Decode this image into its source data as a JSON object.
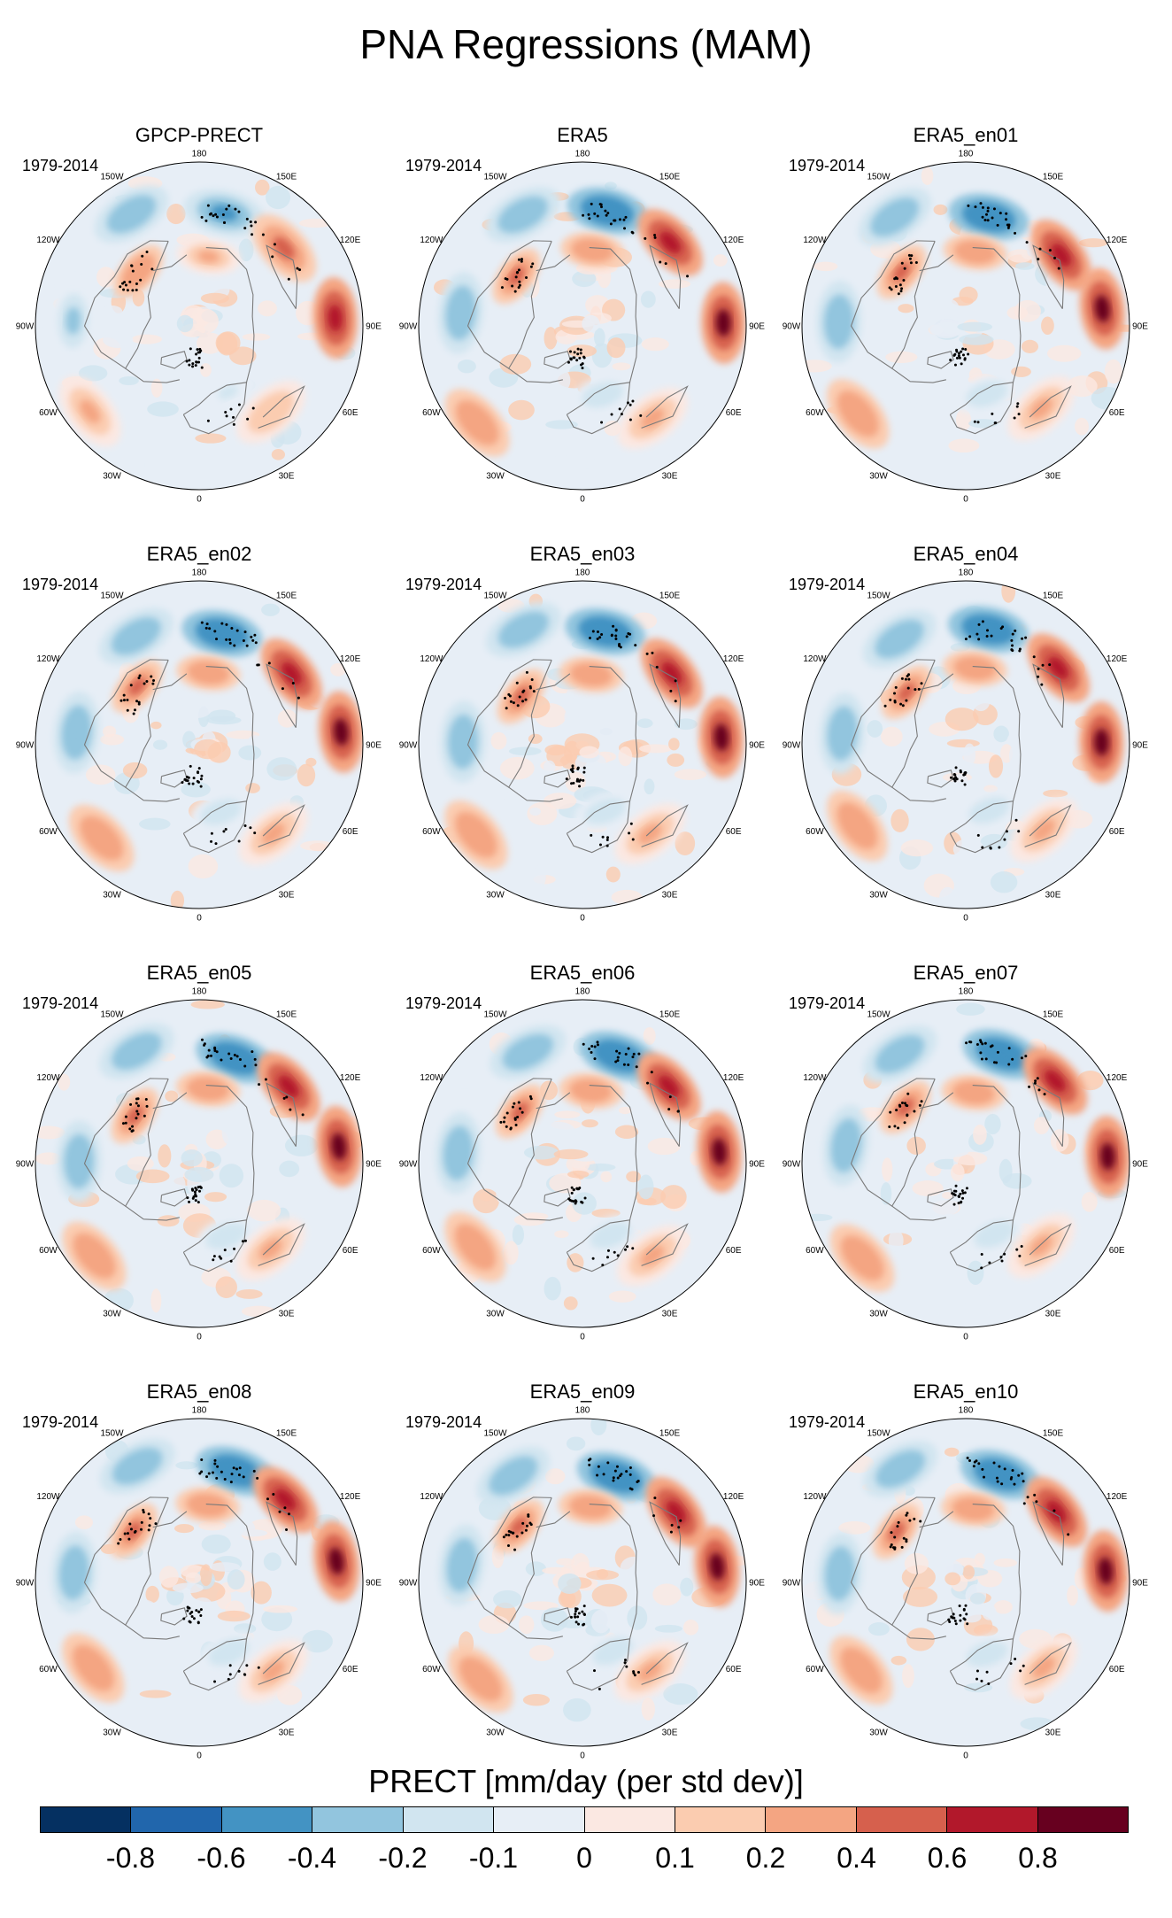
{
  "title": "PNA Regressions (MAM)",
  "colors": {
    "scale": [
      "#053061",
      "#2166ac",
      "#4393c3",
      "#92c5de",
      "#d1e5f0",
      "#e7eef6",
      "#fbe8e2",
      "#fbccb0",
      "#f4a582",
      "#d6604d",
      "#b2182b",
      "#67001f"
    ],
    "land_outline": "#7a7a7a",
    "circle_outline": "#000000"
  },
  "chart_data": {
    "type": "heatmap",
    "projection": "north-polar-stereographic",
    "variable": "PRECT",
    "units": "mm/day (per std dev)",
    "colorbar": {
      "title": "PRECT [mm/day (per std dev)]",
      "levels": [
        "-0.8",
        "-0.6",
        "-0.4",
        "-0.2",
        "-0.1",
        "0",
        "0.1",
        "0.2",
        "0.4",
        "0.6",
        "0.8"
      ]
    },
    "longitude_labels": {
      "lon_180": "180",
      "lon_150e": "150E",
      "lon_120e": "120E",
      "lon_90e": "90E",
      "lon_60e": "60E",
      "lon_30e": "30E",
      "lon_0": "0",
      "lon_30w": "30W",
      "lon_60w": "60W",
      "lon_90w": "90W",
      "lon_120w": "120W",
      "lon_150w": "150W"
    },
    "panels": [
      {
        "title": "GPCP-PRECT",
        "period": "1979-2014"
      },
      {
        "title": "ERA5",
        "period": "1979-2014"
      },
      {
        "title": "ERA5_en01",
        "period": "1979-2014"
      },
      {
        "title": "ERA5_en02",
        "period": "1979-2014"
      },
      {
        "title": "ERA5_en03",
        "period": "1979-2014"
      },
      {
        "title": "ERA5_en04",
        "period": "1979-2014"
      },
      {
        "title": "ERA5_en05",
        "period": "1979-2014"
      },
      {
        "title": "ERA5_en06",
        "period": "1979-2014"
      },
      {
        "title": "ERA5_en07",
        "period": "1979-2014"
      },
      {
        "title": "ERA5_en08",
        "period": "1979-2014"
      },
      {
        "title": "ERA5_en09",
        "period": "1979-2014"
      },
      {
        "title": "ERA5_en10",
        "period": "1979-2014"
      }
    ],
    "pattern": {
      "features": [
        {
          "name": "north-pacific-negative",
          "lon_deg": 165,
          "colat_frac": 0.7,
          "value": -0.6
        },
        {
          "name": "pacific-subtropical-negative",
          "lon_deg": -150,
          "colat_frac": 0.78,
          "value": -0.4
        },
        {
          "name": "north-america-positive",
          "lon_deg": -130,
          "colat_frac": 0.5,
          "value": 0.4
        },
        {
          "name": "bering-positive",
          "lon_deg": 175,
          "colat_frac": 0.45,
          "value": 0.3
        },
        {
          "name": "east-asia-positive",
          "lon_deg": 130,
          "colat_frac": 0.72,
          "value": 0.6
        },
        {
          "name": "west-pacific-positive",
          "lon_deg": 95,
          "colat_frac": 0.85,
          "value": 0.8
        },
        {
          "name": "atlantic-subtropical-positive",
          "lon_deg": -50,
          "colat_frac": 0.85,
          "value": 0.3
        },
        {
          "name": "gulf-negative",
          "lon_deg": -95,
          "colat_frac": 0.75,
          "value": -0.3
        },
        {
          "name": "europe-negative",
          "lon_deg": 20,
          "colat_frac": 0.45,
          "value": -0.15
        },
        {
          "name": "mediterranean-positive",
          "lon_deg": 40,
          "colat_frac": 0.7,
          "value": 0.2
        }
      ]
    }
  }
}
